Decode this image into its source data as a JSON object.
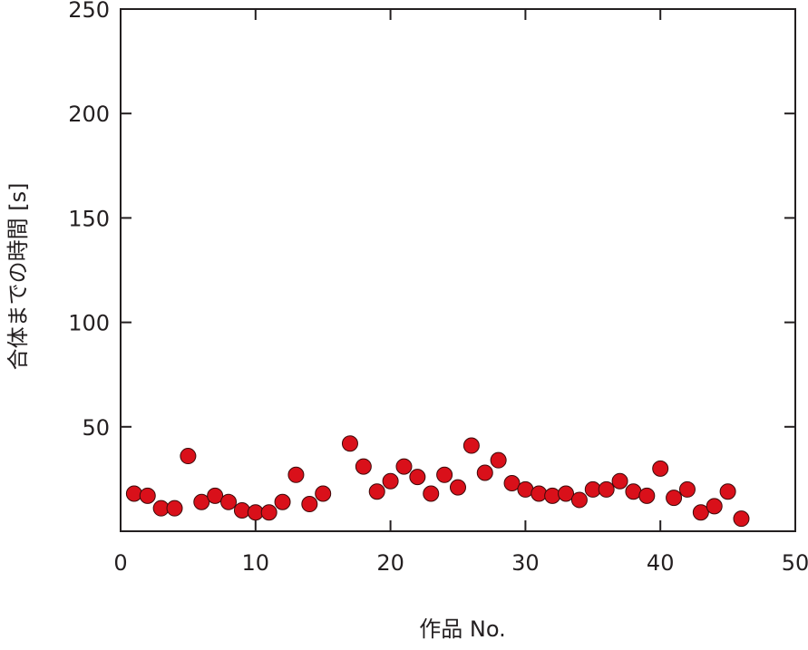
{
  "chart_data": {
    "type": "scatter",
    "title": "",
    "xlabel": "作品 No.",
    "ylabel": "合体までの時間 [s]",
    "xlim": [
      0,
      50
    ],
    "ylim": [
      0,
      250
    ],
    "x_ticks": [
      0,
      10,
      20,
      30,
      40,
      50
    ],
    "y_ticks": [
      50,
      100,
      150,
      200,
      250
    ],
    "x_tick_labels": [
      "0",
      "10",
      "20",
      "30",
      "40",
      "50"
    ],
    "y_tick_labels": [
      "50",
      "100",
      "150",
      "200",
      "250"
    ],
    "grid": false,
    "legend": "none",
    "marker_color": "#d9101a",
    "marker_edge_color": "#3a0a0a",
    "series": [
      {
        "x": [
          1,
          2,
          3,
          4,
          5,
          6,
          7,
          8,
          9,
          10,
          11,
          12,
          13,
          14,
          15,
          17,
          18,
          19,
          20,
          21,
          22,
          23,
          24,
          25,
          26,
          27,
          28,
          29,
          30,
          31,
          32,
          33,
          34,
          35,
          36,
          37,
          38,
          39,
          40,
          41,
          42,
          43,
          44,
          45,
          46
        ],
        "y": [
          18,
          17,
          11,
          11,
          36,
          14,
          17,
          14,
          10,
          9,
          9,
          14,
          27,
          13,
          18,
          42,
          31,
          19,
          24,
          31,
          26,
          18,
          27,
          21,
          41,
          28,
          34,
          23,
          20,
          18,
          17,
          18,
          15,
          20,
          20,
          24,
          19,
          17,
          30,
          16,
          20,
          9,
          12,
          19,
          6
        ]
      }
    ]
  }
}
